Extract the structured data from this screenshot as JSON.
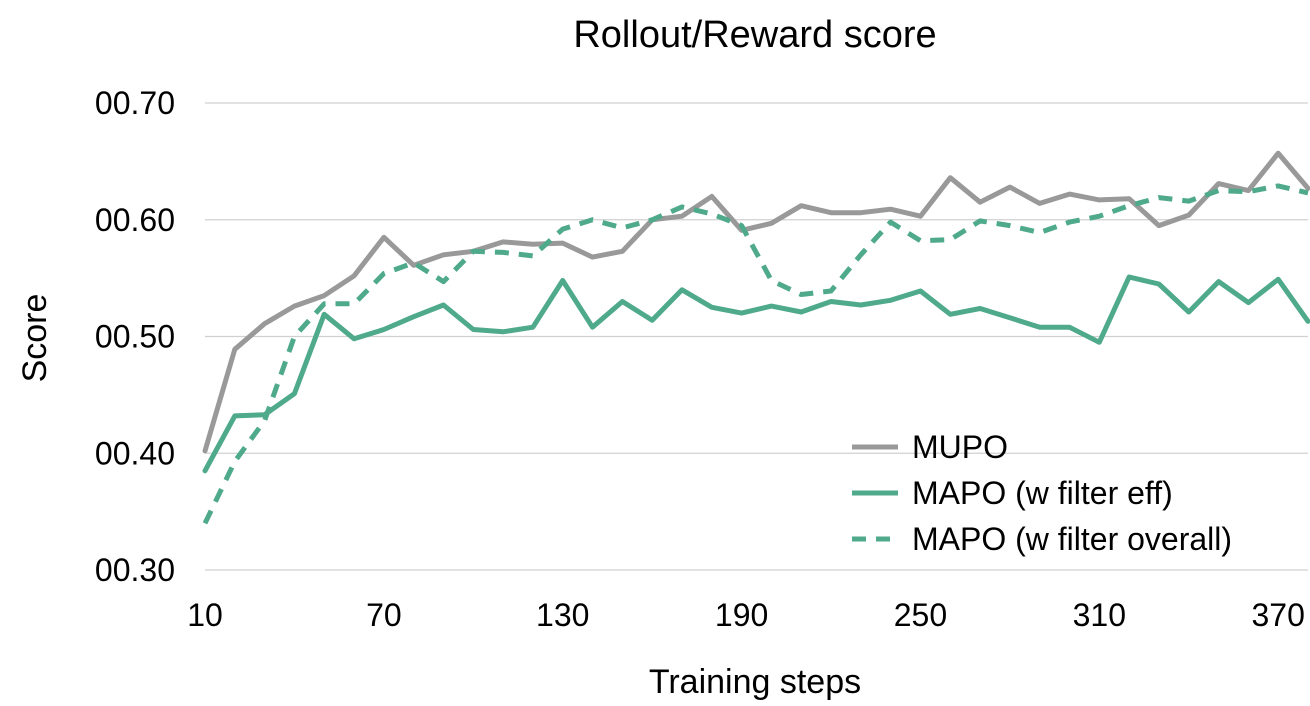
{
  "chart_data": {
    "type": "line",
    "title": "Rollout/Reward score",
    "xlabel": "Training steps",
    "ylabel": "Score",
    "xlim": [
      10,
      380
    ],
    "ylim": [
      0.3,
      0.7
    ],
    "x_ticks": [
      "10",
      "70",
      "130",
      "190",
      "250",
      "310",
      "370"
    ],
    "y_ticks": [
      "00.30",
      "00.40",
      "00.50",
      "00.60",
      "00.70"
    ],
    "grid": "horizontal",
    "legend_position": "bottom-right",
    "x": [
      10,
      20,
      30,
      40,
      50,
      60,
      70,
      80,
      90,
      100,
      110,
      120,
      130,
      140,
      150,
      160,
      170,
      180,
      190,
      200,
      210,
      220,
      230,
      240,
      250,
      260,
      270,
      280,
      290,
      300,
      310,
      320,
      330,
      340,
      350,
      360,
      370,
      380
    ],
    "series": [
      {
        "name": "MUPO",
        "color": "#999999",
        "style": "solid",
        "values": [
          0.402,
          0.489,
          0.511,
          0.526,
          0.535,
          0.552,
          0.585,
          0.561,
          0.57,
          0.573,
          0.581,
          0.579,
          0.58,
          0.568,
          0.573,
          0.6,
          0.603,
          0.62,
          0.591,
          0.597,
          0.612,
          0.606,
          0.606,
          0.609,
          0.603,
          0.636,
          0.615,
          0.628,
          0.614,
          0.622,
          0.617,
          0.618,
          0.595,
          0.604,
          0.631,
          0.625,
          0.657,
          0.627
        ]
      },
      {
        "name": "MAPO (w filter eff)",
        "color": "#4fa98b",
        "style": "solid",
        "values": [
          0.385,
          0.432,
          0.433,
          0.451,
          0.519,
          0.498,
          0.506,
          0.517,
          0.527,
          0.506,
          0.504,
          0.508,
          0.548,
          0.508,
          0.53,
          0.514,
          0.54,
          0.525,
          0.52,
          0.526,
          0.521,
          0.53,
          0.527,
          0.531,
          0.539,
          0.519,
          0.524,
          0.516,
          0.508,
          0.508,
          0.495,
          0.551,
          0.545,
          0.521,
          0.547,
          0.529,
          0.549,
          0.513
        ]
      },
      {
        "name": "MAPO (w filter overall)",
        "color": "#4fa98b",
        "style": "dashed",
        "values": [
          0.34,
          0.393,
          0.428,
          0.5,
          0.528,
          0.528,
          0.554,
          0.563,
          0.547,
          0.573,
          0.572,
          0.569,
          0.592,
          0.6,
          0.593,
          0.6,
          0.611,
          0.605,
          0.595,
          0.548,
          0.536,
          0.539,
          0.57,
          0.598,
          0.582,
          0.583,
          0.599,
          0.595,
          0.589,
          0.598,
          0.603,
          0.612,
          0.619,
          0.616,
          0.625,
          0.624,
          0.629,
          0.623
        ]
      }
    ]
  }
}
